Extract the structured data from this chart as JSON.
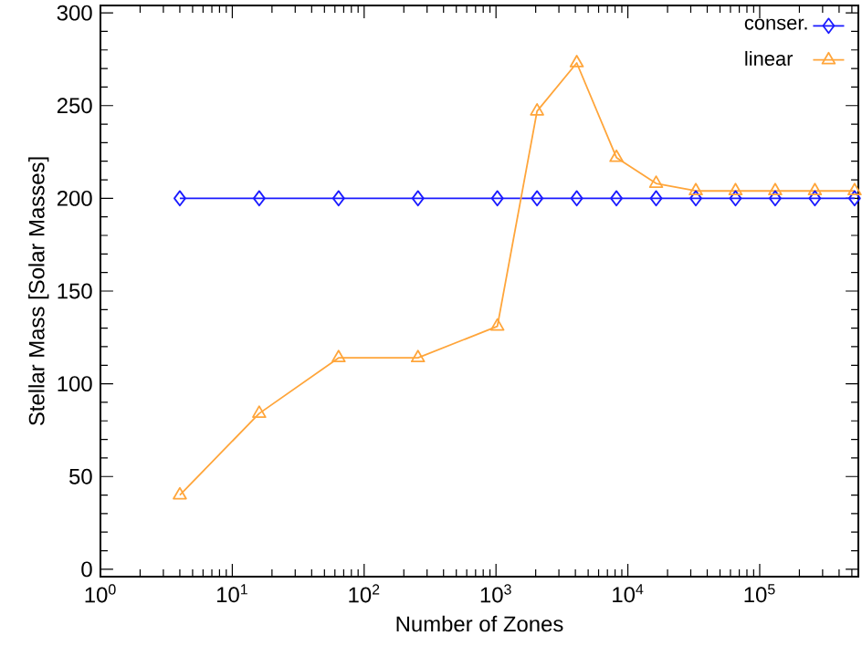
{
  "chart_data": {
    "type": "line",
    "xlabel": "Number of Zones",
    "ylabel": "Stellar Mass [Solar Masses]",
    "x": [
      4,
      16,
      64,
      256,
      1024,
      2048,
      4096,
      8192,
      16384,
      32768,
      65536,
      131072,
      262144,
      524288
    ],
    "series": [
      {
        "name": "conser.",
        "color": "#1a1aff",
        "marker": "diamond",
        "values": [
          200,
          200,
          200,
          200,
          200,
          200,
          200,
          200,
          200,
          200,
          200,
          200,
          200,
          200
        ]
      },
      {
        "name": "linear",
        "color": "#ffa53a",
        "marker": "triangle",
        "values": [
          40,
          84,
          114,
          114,
          131,
          247,
          273,
          222,
          208,
          204,
          204,
          204,
          204,
          204
        ]
      }
    ],
    "log": "x",
    "xlim": [
      1,
      560000
    ],
    "ylim": [
      -4,
      304
    ],
    "xticks": [
      {
        "value": 1,
        "label": "10$^{0}$"
      },
      {
        "value": 10,
        "label": "10$^{1}$"
      },
      {
        "value": 100,
        "label": "10$^{2}$"
      },
      {
        "value": 1000,
        "label": "10$^{3}$"
      },
      {
        "value": 10000,
        "label": "10$^{4}$"
      },
      {
        "value": 100000,
        "label": "10$^{5}$"
      }
    ],
    "yticks": [
      0,
      50,
      100,
      150,
      200,
      250,
      300
    ],
    "legend": "top right",
    "grid": false,
    "line_style": "solid"
  }
}
